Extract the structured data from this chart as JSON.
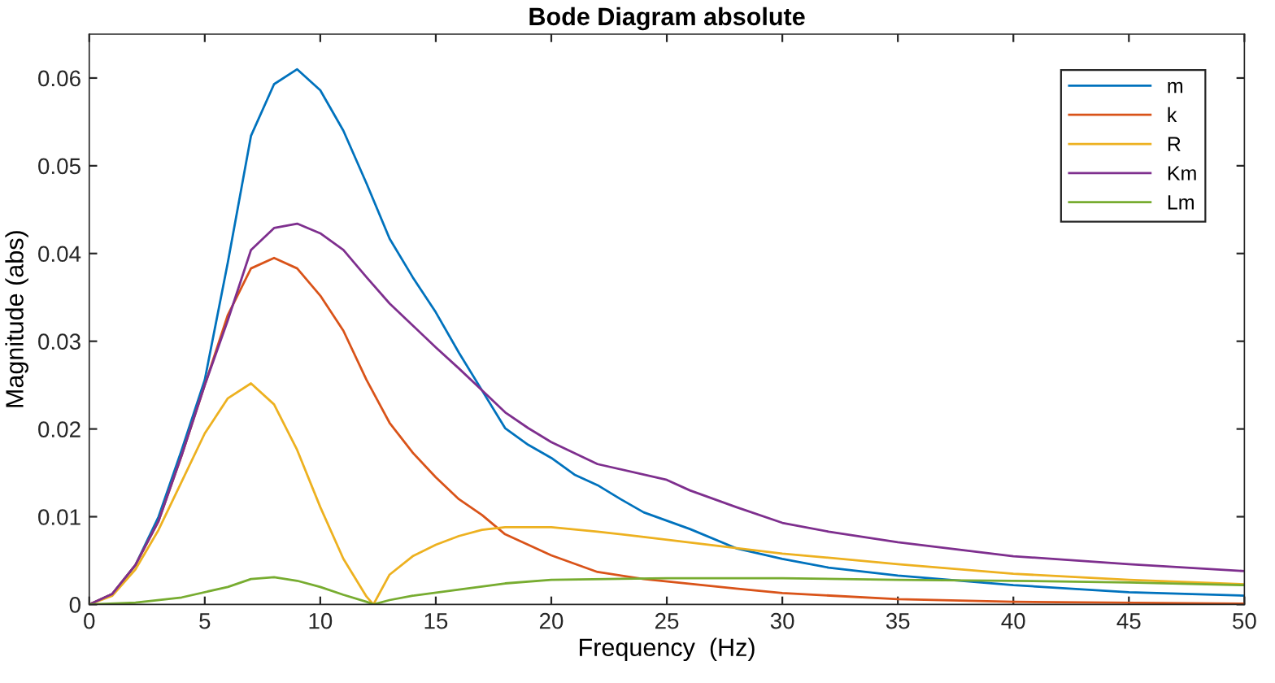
{
  "chart_data": {
    "type": "line",
    "title": "Bode Diagram absolute",
    "xlabel": "Frequency  (Hz)",
    "ylabel": "Magnitude (abs)",
    "xlim": [
      0,
      50
    ],
    "ylim": [
      0,
      0.065
    ],
    "xticks": [
      0,
      5,
      10,
      15,
      20,
      25,
      30,
      35,
      40,
      45,
      50
    ],
    "yticks": [
      0,
      0.01,
      0.02,
      0.03,
      0.04,
      0.05,
      0.06
    ],
    "grid": false,
    "legend": "top right",
    "marker": "none",
    "line_style": "solid",
    "series": [
      {
        "name": "m",
        "color": "#0072bd",
        "x": [
          0,
          1,
          2,
          3,
          4,
          5,
          6,
          7,
          8,
          9,
          10,
          11,
          12,
          13,
          14,
          15,
          16,
          17,
          18,
          19,
          20,
          21,
          22,
          23,
          24,
          26,
          28,
          30,
          32,
          35,
          40,
          45,
          50
        ],
        "values": [
          0,
          0.0012,
          0.0045,
          0.01,
          0.0176,
          0.0256,
          0.039,
          0.0534,
          0.0593,
          0.061,
          0.0586,
          0.054,
          0.048,
          0.0417,
          0.0373,
          0.0333,
          0.0287,
          0.0244,
          0.0201,
          0.0182,
          0.0167,
          0.0148,
          0.0136,
          0.012,
          0.0105,
          0.0086,
          0.0064,
          0.0052,
          0.0042,
          0.0033,
          0.0022,
          0.0014,
          0.001
        ]
      },
      {
        "name": "k",
        "color": "#d95319",
        "x": [
          0,
          1,
          2,
          3,
          4,
          5,
          6,
          7,
          8,
          9,
          10,
          11,
          12,
          13,
          14,
          15,
          16,
          17,
          18,
          19,
          20,
          22,
          24,
          28,
          30,
          35,
          40,
          50
        ],
        "values": [
          0,
          0.0012,
          0.0045,
          0.0095,
          0.017,
          0.025,
          0.033,
          0.0383,
          0.0395,
          0.0383,
          0.0352,
          0.0312,
          0.0256,
          0.0207,
          0.0173,
          0.0145,
          0.012,
          0.0102,
          0.008,
          0.0068,
          0.0056,
          0.0037,
          0.0029,
          0.0018,
          0.0013,
          0.0006,
          0.0003,
          0.0001
        ]
      },
      {
        "name": "R",
        "color": "#edb120",
        "x": [
          0,
          1,
          2,
          3,
          4,
          5,
          6,
          7,
          8,
          9,
          10,
          11,
          12,
          12.3,
          13,
          14,
          15,
          16,
          17,
          18,
          20,
          22,
          24,
          30,
          35,
          40,
          45,
          50
        ],
        "values": [
          0,
          0.001,
          0.004,
          0.0085,
          0.014,
          0.0195,
          0.0235,
          0.0252,
          0.0228,
          0.0176,
          0.0111,
          0.0052,
          0.0009,
          0,
          0.0034,
          0.0055,
          0.0068,
          0.0078,
          0.0085,
          0.0088,
          0.0088,
          0.0083,
          0.0077,
          0.0058,
          0.0046,
          0.0035,
          0.0028,
          0.0023
        ]
      },
      {
        "name": "Km",
        "color": "#7e2f8e",
        "x": [
          0,
          1,
          2,
          3,
          4,
          5,
          6,
          7,
          8,
          9,
          10,
          11,
          12,
          13,
          14,
          15,
          16,
          17,
          18,
          19,
          20,
          22,
          25,
          26,
          28,
          30,
          32,
          35,
          40,
          45,
          50
        ],
        "values": [
          0,
          0.0012,
          0.0045,
          0.0095,
          0.017,
          0.025,
          0.0324,
          0.0404,
          0.0429,
          0.0434,
          0.0423,
          0.0404,
          0.0373,
          0.0343,
          0.0318,
          0.0293,
          0.0269,
          0.0244,
          0.0219,
          0.0201,
          0.0185,
          0.016,
          0.0142,
          0.013,
          0.0111,
          0.0093,
          0.0083,
          0.0071,
          0.0055,
          0.0046,
          0.0038
        ]
      },
      {
        "name": "Lm",
        "color": "#77ac30",
        "x": [
          0,
          2,
          4,
          6,
          7,
          8,
          9,
          10,
          11,
          12,
          12.3,
          13,
          14,
          16,
          18,
          20,
          25,
          30,
          35,
          40,
          45,
          50
        ],
        "values": [
          0,
          0.0002,
          0.0008,
          0.002,
          0.0029,
          0.0031,
          0.0027,
          0.002,
          0.0011,
          0.0003,
          0,
          0.0005,
          0.001,
          0.0017,
          0.0024,
          0.0028,
          0.003,
          0.003,
          0.0028,
          0.0027,
          0.0025,
          0.0022
        ]
      }
    ]
  }
}
